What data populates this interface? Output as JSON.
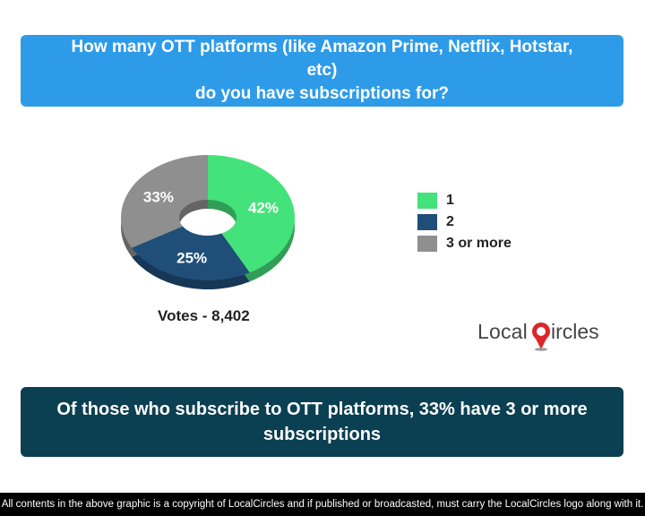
{
  "question": {
    "line1": "How many OTT platforms (like Amazon Prime, Netflix, Hotstar, etc)",
    "line2": "do you have subscriptions for?"
  },
  "chart_data": {
    "type": "pie",
    "donut": true,
    "categories": [
      "1",
      "2",
      "3 or more"
    ],
    "values": [
      42,
      25,
      33
    ],
    "labels": [
      "42%",
      "25%",
      "33%"
    ],
    "colors": [
      "#44e27b",
      "#1f4e79",
      "#8f8f8f"
    ],
    "legend_position": "right"
  },
  "votes": "Votes - 8,402",
  "logo": {
    "text_left": "Local",
    "text_right": "ircles",
    "accent": "#d9262b"
  },
  "finding": {
    "line1": "Of those who subscribe to OTT platforms, 33% have 3 or more",
    "line2": "subscriptions"
  },
  "footer": "All contents in the above graphic is a copyright of LocalCircles and if published or broadcasted, must carry the LocalCircles logo along with it."
}
